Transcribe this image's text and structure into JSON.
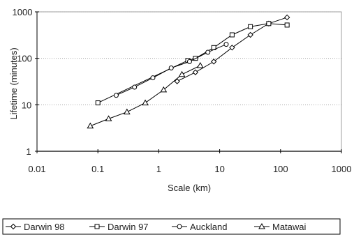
{
  "chart_data": {
    "type": "line",
    "title": "",
    "xlabel": "Scale (km)",
    "ylabel": "Lifetime (minutes)",
    "x_scale": "log",
    "y_scale": "log",
    "xlim": [
      0.01,
      1000
    ],
    "ylim": [
      1,
      1000
    ],
    "x_ticks": [
      "0.01",
      "0.1",
      "1",
      "10",
      "100",
      "1000"
    ],
    "y_ticks": [
      "1",
      "10",
      "100",
      "1000"
    ],
    "grid": "horizontal dotted",
    "legend_position": "bottom",
    "series": [
      {
        "name": "Darwin 98",
        "marker": "diamond",
        "x": [
          2.0,
          4.0,
          8.0,
          16.0,
          32.0,
          64.0,
          128.0
        ],
        "y": [
          32,
          50,
          85,
          170,
          320,
          560,
          760
        ]
      },
      {
        "name": "Darwin 97",
        "marker": "square",
        "x": [
          0.1,
          3.0,
          4.0,
          8.0,
          16.0,
          32.0,
          64.0,
          128.0
        ],
        "y": [
          11,
          90,
          100,
          170,
          320,
          480,
          560,
          520
        ]
      },
      {
        "name": "Auckland",
        "marker": "circle",
        "x": [
          0.2,
          0.4,
          0.8,
          1.6,
          3.2,
          6.4,
          12.8
        ],
        "y": [
          16,
          24,
          38,
          62,
          85,
          135,
          200
        ]
      },
      {
        "name": "Matawai",
        "marker": "triangle",
        "x": [
          0.075,
          0.15,
          0.3,
          0.6,
          1.2,
          2.4,
          4.8
        ],
        "y": [
          3.5,
          5,
          7,
          11,
          21,
          45,
          70
        ]
      }
    ]
  }
}
